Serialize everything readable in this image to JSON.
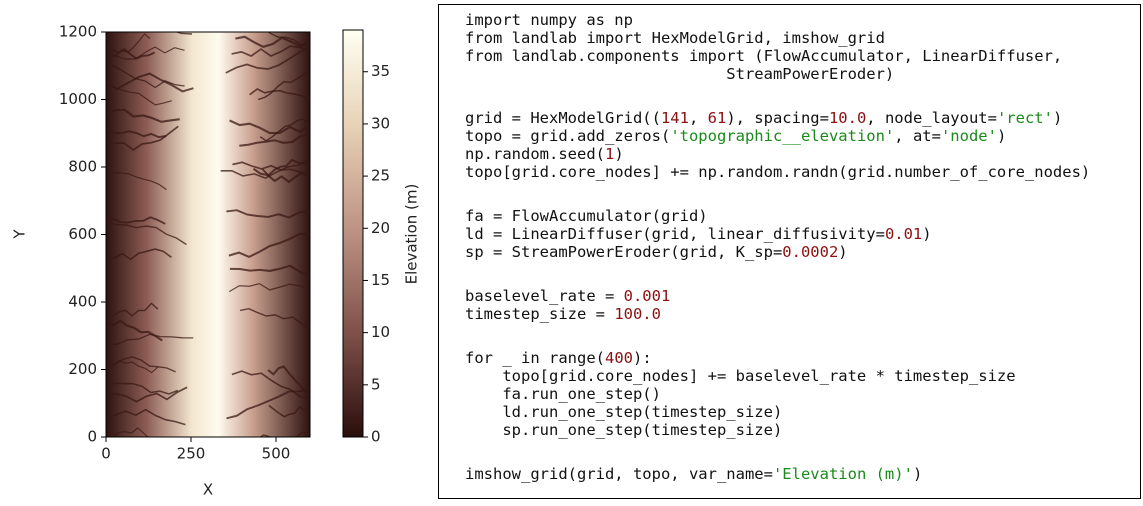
{
  "figure": {
    "xlabel": "X",
    "ylabel": "Y",
    "xlim": [
      0,
      600
    ],
    "ylim": [
      0,
      1200
    ],
    "xticks": [
      0,
      250,
      500
    ],
    "yticks": [
      0,
      200,
      400,
      600,
      800,
      1000,
      1200
    ],
    "colorbar": {
      "label": "Elevation (m)",
      "lim": [
        0,
        39
      ],
      "ticks": [
        0,
        5,
        10,
        15,
        20,
        25,
        30,
        35
      ]
    }
  },
  "code": {
    "blocks": [
      [
        "import numpy as np",
        "from landlab import HexModelGrid, imshow_grid",
        "from landlab.components import (FlowAccumulator, LinearDiffuser,",
        "                            StreamPowerEroder)"
      ],
      [
        "grid = HexModelGrid((141, 61), spacing=10.0, node_layout='rect')",
        "topo = grid.add_zeros('topographic__elevation', at='node')",
        "np.random.seed(1)",
        "topo[grid.core_nodes] += np.random.randn(grid.number_of_core_nodes)"
      ],
      [
        "fa = FlowAccumulator(grid)",
        "ld = LinearDiffuser(grid, linear_diffusivity=0.01)",
        "sp = StreamPowerEroder(grid, K_sp=0.0002)"
      ],
      [
        "baselevel_rate = 0.001",
        "timestep_size = 100.0"
      ],
      [
        "for _ in range(400):",
        "    topo[grid.core_nodes] += baselevel_rate * timestep_size",
        "    fa.run_one_step()",
        "    ld.run_one_step(timestep_size)",
        "    sp.run_one_step(timestep_size)"
      ],
      [
        "imshow_grid(grid, topo, var_name='Elevation (m)')"
      ]
    ]
  }
}
